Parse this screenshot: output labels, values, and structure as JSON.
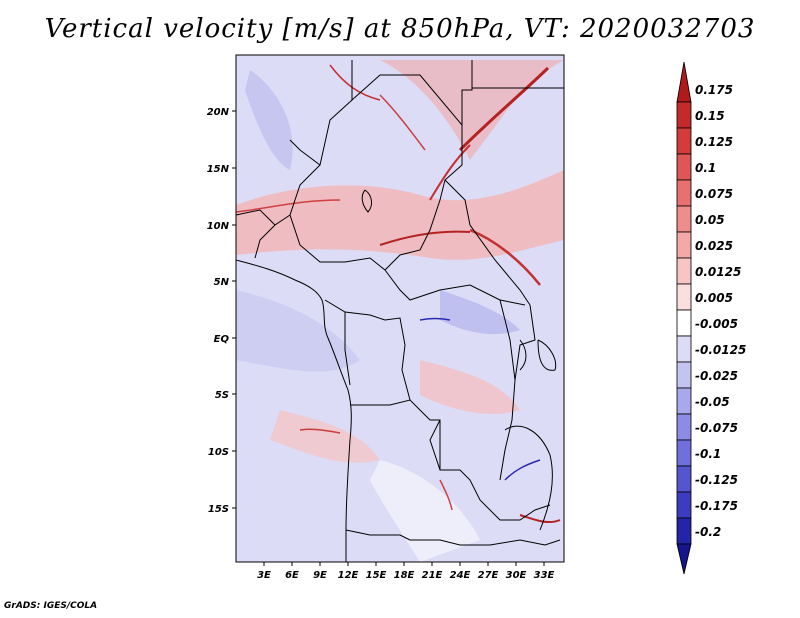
{
  "title": "Vertical velocity [m/s] at 850hPa, VT: 2020032703",
  "credit": "GrADS: IGES/COLA",
  "map": {
    "lat_labels": [
      "20N",
      "15N",
      "10N",
      "5N",
      "EQ",
      "5S",
      "10S",
      "15S"
    ],
    "lon_labels": [
      "3E",
      "6E",
      "9E",
      "12E",
      "15E",
      "18E",
      "21E",
      "24E",
      "27E",
      "30E",
      "33E"
    ]
  },
  "colorbar": {
    "labels": [
      "0.175",
      "0.15",
      "0.125",
      "0.1",
      "0.075",
      "0.05",
      "0.025",
      "0.0125",
      "0.005",
      "-0.005",
      "-0.0125",
      "-0.025",
      "-0.05",
      "-0.075",
      "-0.1",
      "-0.125",
      "-0.175",
      "-0.2"
    ],
    "colors": [
      "#b01a1a",
      "#c52a2a",
      "#d43c3c",
      "#e05555",
      "#e87070",
      "#ef8c8c",
      "#f4a8a8",
      "#f8c4c4",
      "#fbdfdf",
      "#ffffff",
      "#dcdcf7",
      "#c4c4f2",
      "#a8a8ec",
      "#8c8ce6",
      "#7070dd",
      "#5555cf",
      "#3c3cc0",
      "#2424a8",
      "#14148c"
    ]
  }
}
